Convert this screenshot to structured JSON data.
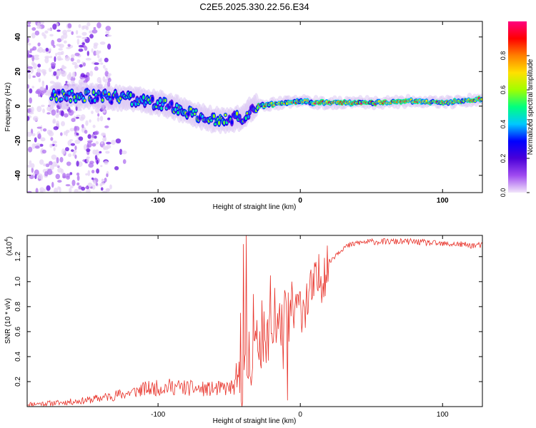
{
  "title": "C2E5.2025.330.22.56.E34",
  "chart_data": [
    {
      "type": "heatmap",
      "title": "C2E5.2025.330.22.56.E34",
      "xlabel": "Height of straight line (km)",
      "ylabel": "Frequency (Hz)",
      "xlim": [
        -192,
        128
      ],
      "ylim": [
        -50,
        49
      ],
      "xticks": [
        -100,
        0,
        100
      ],
      "yticks": [
        -40,
        -20,
        0,
        20,
        40
      ],
      "colorbar": {
        "label": "Normalized spectral amplitude",
        "range": [
          0,
          1
        ],
        "ticks": [
          0.0,
          0.2,
          0.4,
          0.6,
          0.8
        ],
        "stops": [
          "#f2e6fa",
          "#a04cf0",
          "#4a00d8",
          "#0000ff",
          "#00c8ff",
          "#00ff80",
          "#a0ff00",
          "#ffe000",
          "#ff8000",
          "#ff0000",
          "#ff0080"
        ]
      },
      "ridge": {
        "x": [
          -170,
          -150,
          -130,
          -110,
          -100,
          -90,
          -80,
          -70,
          -60,
          -50,
          -40,
          -35,
          -30,
          -20,
          -10,
          0,
          10,
          20,
          40,
          60,
          80,
          100,
          128
        ],
        "y": [
          6,
          6,
          5,
          3,
          2,
          0,
          -3,
          -6,
          -8,
          -8,
          -6,
          -2,
          0,
          1,
          2,
          3,
          2,
          2,
          2,
          2,
          3,
          2,
          4
        ]
      }
    },
    {
      "type": "line",
      "xlabel": "Height of straight line (km)",
      "ylabel": "SNR (10 * v/v)",
      "y_multiplier": "(x10",
      "y_multiplier_exp": "4",
      "y_multiplier_close": ")",
      "xlim": [
        -192,
        128
      ],
      "ylim": [
        0,
        1.37
      ],
      "xticks": [
        -100,
        0,
        100
      ],
      "yticks": [
        0.2,
        0.4,
        0.6,
        0.8,
        1.0,
        1.2
      ],
      "color": "#e8332a",
      "series": [
        {
          "name": "SNR",
          "x": [
            -192,
            -170,
            -150,
            -140,
            -130,
            -120,
            -110,
            -100,
            -90,
            -80,
            -70,
            -60,
            -50,
            -45,
            -40,
            -35,
            -30,
            -25,
            -20,
            -15,
            -10,
            -5,
            0,
            5,
            10,
            15,
            20,
            25,
            30,
            40,
            50,
            60,
            70,
            80,
            90,
            100,
            110,
            120,
            128
          ],
          "values": [
            0.02,
            0.03,
            0.05,
            0.07,
            0.09,
            0.11,
            0.14,
            0.15,
            0.16,
            0.15,
            0.14,
            0.14,
            0.15,
            0.16,
            0.22,
            0.35,
            0.5,
            0.55,
            0.6,
            0.65,
            0.75,
            0.7,
            0.8,
            0.85,
            0.95,
            1.05,
            1.15,
            1.22,
            1.27,
            1.31,
            1.32,
            1.32,
            1.32,
            1.32,
            1.31,
            1.3,
            1.3,
            1.29,
            1.29
          ],
          "spikes": [
            {
              "x": -42,
              "value": 0.75
            },
            {
              "x": -40,
              "value": 1.3
            },
            {
              "x": -38,
              "value": 1.37
            },
            {
              "x": -36,
              "value": 0.6
            },
            {
              "x": -33,
              "value": 0.9
            },
            {
              "x": -30,
              "value": 0.45
            },
            {
              "x": -27,
              "value": 0.85
            },
            {
              "x": -24,
              "value": 0.35
            },
            {
              "x": -21,
              "value": 1.05
            },
            {
              "x": -18,
              "value": 0.95
            },
            {
              "x": -12,
              "value": 0.3
            },
            {
              "x": -9,
              "value": 0.05
            },
            {
              "x": -6,
              "value": 1.0
            },
            {
              "x": -3,
              "value": 0.9
            }
          ]
        }
      ]
    }
  ]
}
